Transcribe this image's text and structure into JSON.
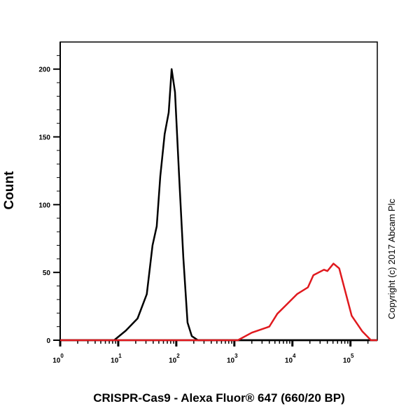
{
  "chart_data": {
    "type": "line",
    "title": "",
    "xlabel": "CRISPR-Cas9 - Alexa Fluor® 647 (660/20 BP)",
    "ylabel": "Count",
    "xscale": "log",
    "xlim": [
      1,
      290000
    ],
    "ylim": [
      0,
      220
    ],
    "x_ticks": [
      {
        "base": "10",
        "exp": "0",
        "value": 1
      },
      {
        "base": "10",
        "exp": "1",
        "value": 10
      },
      {
        "base": "10",
        "exp": "2",
        "value": 100
      },
      {
        "base": "10",
        "exp": "3",
        "value": 1000
      },
      {
        "base": "10",
        "exp": "4",
        "value": 10000
      },
      {
        "base": "10",
        "exp": "5",
        "value": 100000
      }
    ],
    "y_ticks": [
      {
        "label": "0",
        "value": 0
      },
      {
        "label": "50",
        "value": 50
      },
      {
        "label": "100",
        "value": 100
      },
      {
        "label": "150",
        "value": 150
      },
      {
        "label": "200",
        "value": 200
      }
    ],
    "grid": false,
    "legend": "none",
    "series": [
      {
        "color": "#000000",
        "x": [
          1,
          8.5,
          13.5,
          21.5,
          31,
          39,
          46,
          53,
          63,
          74,
          83,
          95,
          112,
          132,
          156,
          185,
          236,
          290000
        ],
        "y": [
          0,
          0,
          7,
          16,
          34,
          70,
          84,
          121,
          152,
          168,
          200,
          183,
          121,
          61,
          13,
          3,
          0,
          0
        ]
      },
      {
        "color": "#e0191e",
        "x": [
          1,
          1150,
          2000,
          4000,
          5500,
          7400,
          12000,
          18500,
          23000,
          35000,
          40000,
          51000,
          64000,
          105000,
          160000,
          225000,
          290000
        ],
        "y": [
          0,
          0,
          5.6,
          10,
          19.5,
          25,
          34,
          39,
          48,
          52,
          51,
          56.5,
          53,
          18,
          6.5,
          0,
          0
        ]
      }
    ]
  },
  "copyright": "Copyright (c) 2017 Abcam Plc"
}
